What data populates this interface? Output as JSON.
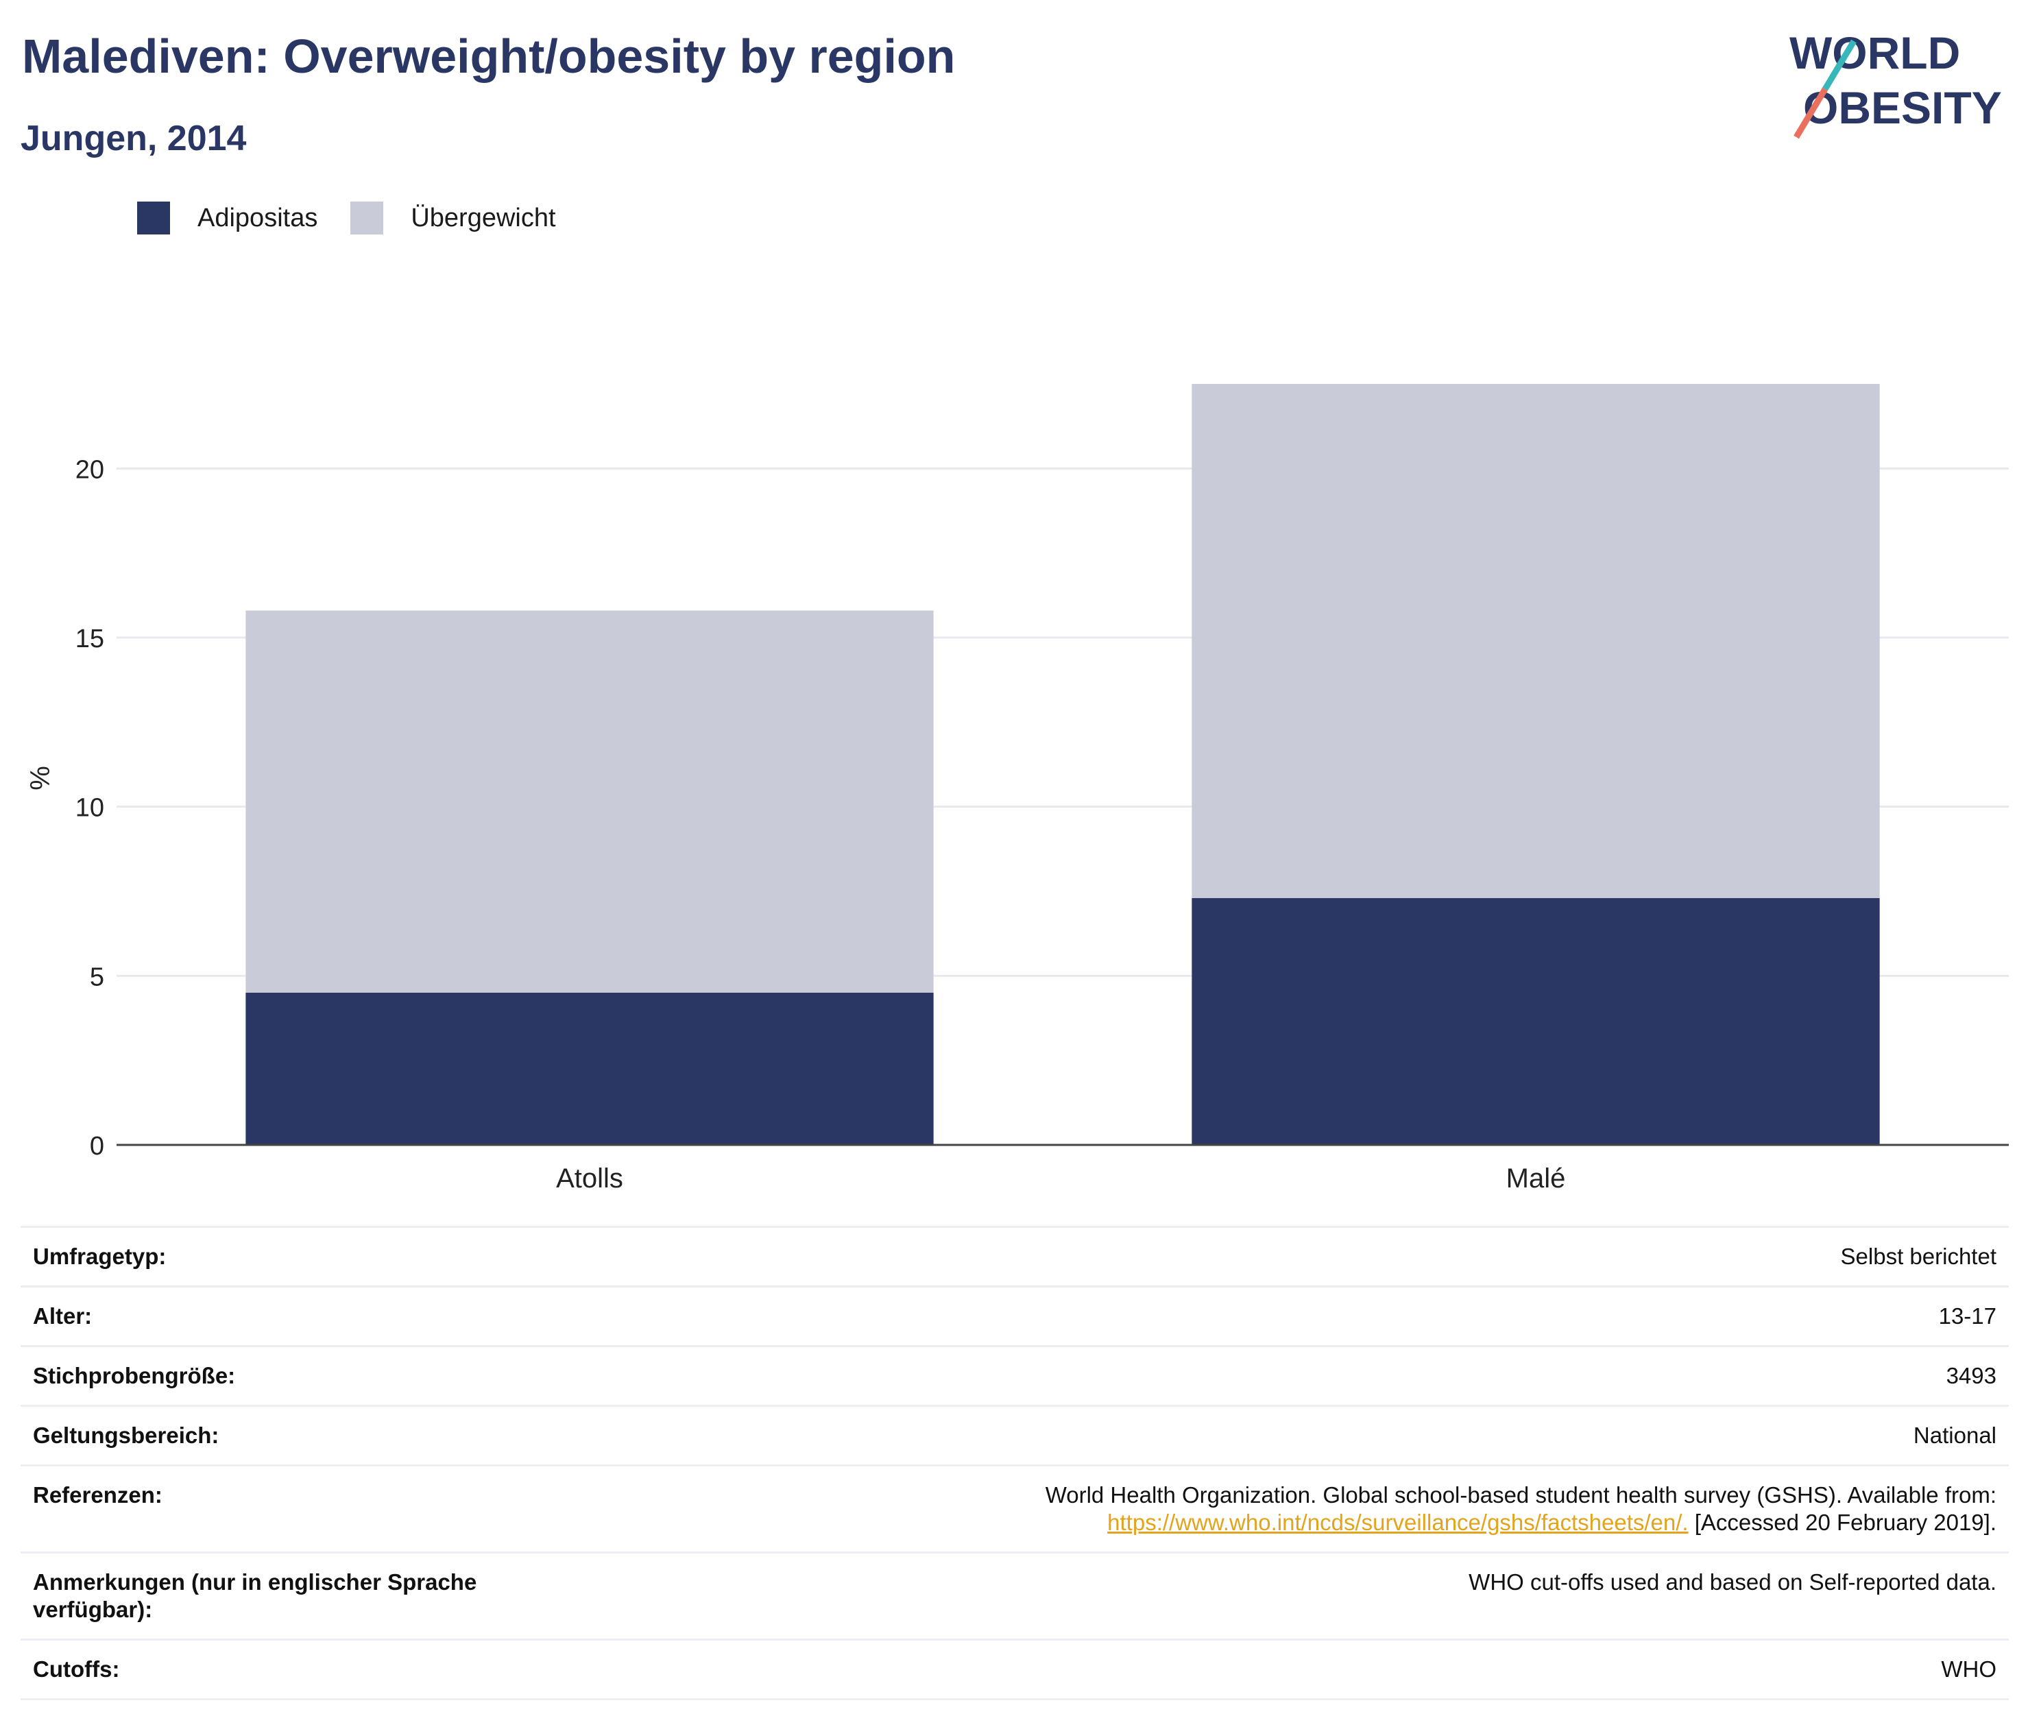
{
  "header": {
    "title": "Malediven: Overweight/obesity by region",
    "subtitle": "Jungen, 2014"
  },
  "logo": {
    "line1": "WORLD",
    "line2": "OBESITY"
  },
  "chart_data": {
    "type": "bar",
    "stacked": true,
    "categories": [
      "Atolls",
      "Malé"
    ],
    "series": [
      {
        "name": "Adipositas",
        "values": [
          4.5,
          7.3
        ],
        "color": "#2a3764"
      },
      {
        "name": "Übergewicht",
        "values": [
          11.3,
          15.2
        ],
        "color": "#c9ccd8"
      }
    ],
    "ylabel": "%",
    "ylim": [
      0,
      22.5
    ],
    "yticks": [
      0,
      5,
      10,
      15,
      20
    ],
    "grid": true,
    "legend_position": "top-left"
  },
  "metadata": [
    {
      "label": "Umfragetyp:",
      "value": "Selbst berichtet"
    },
    {
      "label": "Alter:",
      "value": "13-17"
    },
    {
      "label": "Stichprobengröße:",
      "value": "3493"
    },
    {
      "label": "Geltungsbereich:",
      "value": "National"
    },
    {
      "label": "Referenzen:",
      "value": "World Health Organization. Global school-based student health survey (GSHS). Available from:",
      "link": "https://www.who.int/ncds/surveillance/gshs/factsheets/en/.",
      "suffix": " [Accessed 20 February 2019]."
    },
    {
      "label": "Anmerkungen (nur in englischer Sprache verfügbar):",
      "value": "WHO cut-offs used and based on Self-reported data."
    },
    {
      "label": "Cutoffs:",
      "value": "WHO"
    }
  ]
}
